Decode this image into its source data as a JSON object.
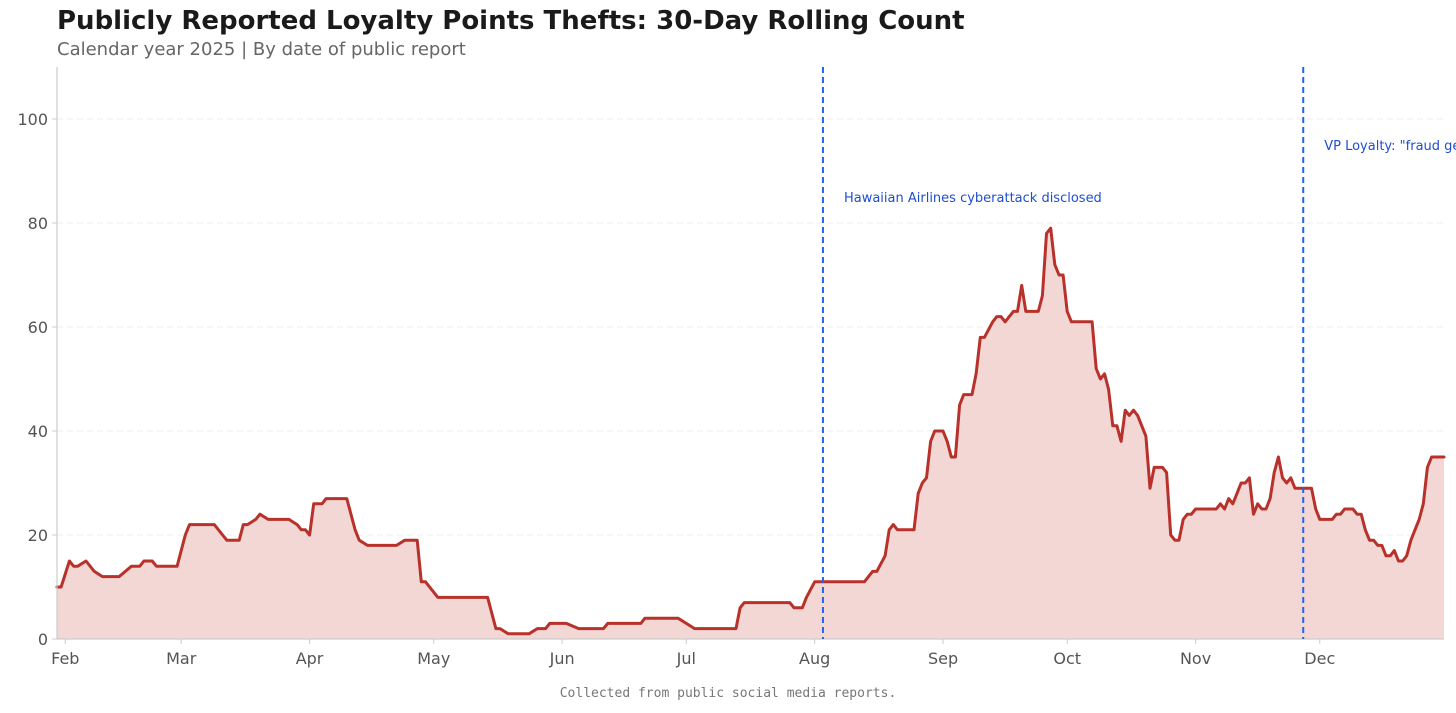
{
  "chart_data": {
    "type": "area",
    "title": "Publicly Reported Loyalty Points Thefts: 30-Day Rolling Count",
    "subtitle": "Calendar year 2025 | By date of public report",
    "footer": "Collected from public social media reports.",
    "ylim": [
      0,
      110
    ],
    "y_ticks": [
      0,
      20,
      40,
      60,
      80,
      100
    ],
    "x_range": [
      "2025-01-30",
      "2025-12-31"
    ],
    "x_ticks": [
      {
        "date": "2025-02-01",
        "label": "Feb"
      },
      {
        "date": "2025-03-01",
        "label": "Mar"
      },
      {
        "date": "2025-04-01",
        "label": "Apr"
      },
      {
        "date": "2025-05-01",
        "label": "May"
      },
      {
        "date": "2025-06-01",
        "label": "Jun"
      },
      {
        "date": "2025-07-01",
        "label": "Jul"
      },
      {
        "date": "2025-08-01",
        "label": "Aug"
      },
      {
        "date": "2025-09-01",
        "label": "Sep"
      },
      {
        "date": "2025-10-01",
        "label": "Oct"
      },
      {
        "date": "2025-11-01",
        "label": "Nov"
      },
      {
        "date": "2025-12-01",
        "label": "Dec"
      }
    ],
    "grid": "horizontal",
    "colors": {
      "line": "#b8312a",
      "fill": "#f2d7d5",
      "annotation": "#2563eb",
      "annotation_text": "#1f4fcf"
    },
    "series": [
      {
        "points": [
          [
            "2025-01-30",
            10
          ],
          [
            "2025-01-31",
            10
          ],
          [
            "2025-02-02",
            15
          ],
          [
            "2025-02-03",
            14
          ],
          [
            "2025-02-04",
            14
          ],
          [
            "2025-02-06",
            15
          ],
          [
            "2025-02-08",
            13
          ],
          [
            "2025-02-10",
            12
          ],
          [
            "2025-02-14",
            12
          ],
          [
            "2025-02-17",
            14
          ],
          [
            "2025-02-19",
            14
          ],
          [
            "2025-02-20",
            15
          ],
          [
            "2025-02-22",
            15
          ],
          [
            "2025-02-23",
            14
          ],
          [
            "2025-02-28",
            14
          ],
          [
            "2025-03-02",
            20
          ],
          [
            "2025-03-03",
            22
          ],
          [
            "2025-03-09",
            22
          ],
          [
            "2025-03-11",
            20
          ],
          [
            "2025-03-12",
            19
          ],
          [
            "2025-03-15",
            19
          ],
          [
            "2025-03-16",
            22
          ],
          [
            "2025-03-17",
            22
          ],
          [
            "2025-03-19",
            23
          ],
          [
            "2025-03-20",
            24
          ],
          [
            "2025-03-22",
            23
          ],
          [
            "2025-03-27",
            23
          ],
          [
            "2025-03-29",
            22
          ],
          [
            "2025-03-30",
            21
          ],
          [
            "2025-03-31",
            21
          ],
          [
            "2025-04-01",
            20
          ],
          [
            "2025-04-02",
            26
          ],
          [
            "2025-04-04",
            26
          ],
          [
            "2025-04-05",
            27
          ],
          [
            "2025-04-10",
            27
          ],
          [
            "2025-04-12",
            21
          ],
          [
            "2025-04-13",
            19
          ],
          [
            "2025-04-15",
            18
          ],
          [
            "2025-04-22",
            18
          ],
          [
            "2025-04-24",
            19
          ],
          [
            "2025-04-27",
            19
          ],
          [
            "2025-04-28",
            11
          ],
          [
            "2025-04-29",
            11
          ],
          [
            "2025-04-30",
            10
          ],
          [
            "2025-05-02",
            8
          ],
          [
            "2025-05-14",
            8
          ],
          [
            "2025-05-16",
            2
          ],
          [
            "2025-05-17",
            2
          ],
          [
            "2025-05-19",
            1
          ],
          [
            "2025-05-24",
            1
          ],
          [
            "2025-05-26",
            2
          ],
          [
            "2025-05-28",
            2
          ],
          [
            "2025-05-29",
            3
          ],
          [
            "2025-06-02",
            3
          ],
          [
            "2025-06-05",
            2
          ],
          [
            "2025-06-11",
            2
          ],
          [
            "2025-06-12",
            3
          ],
          [
            "2025-06-20",
            3
          ],
          [
            "2025-06-21",
            4
          ],
          [
            "2025-06-29",
            4
          ],
          [
            "2025-07-01",
            3
          ],
          [
            "2025-07-03",
            2
          ],
          [
            "2025-07-13",
            2
          ],
          [
            "2025-07-14",
            6
          ],
          [
            "2025-07-15",
            7
          ],
          [
            "2025-07-26",
            7
          ],
          [
            "2025-07-27",
            6
          ],
          [
            "2025-07-29",
            6
          ],
          [
            "2025-07-30",
            8
          ],
          [
            "2025-08-01",
            11
          ],
          [
            "2025-08-13",
            11
          ],
          [
            "2025-08-14",
            12
          ],
          [
            "2025-08-15",
            13
          ],
          [
            "2025-08-16",
            13
          ],
          [
            "2025-08-18",
            16
          ],
          [
            "2025-08-19",
            21
          ],
          [
            "2025-08-20",
            22
          ],
          [
            "2025-08-21",
            21
          ],
          [
            "2025-08-25",
            21
          ],
          [
            "2025-08-26",
            28
          ],
          [
            "2025-08-27",
            30
          ],
          [
            "2025-08-28",
            31
          ],
          [
            "2025-08-29",
            38
          ],
          [
            "2025-08-30",
            40
          ],
          [
            "2025-09-01",
            40
          ],
          [
            "2025-09-02",
            38
          ],
          [
            "2025-09-03",
            35
          ],
          [
            "2025-09-04",
            35
          ],
          [
            "2025-09-05",
            45
          ],
          [
            "2025-09-06",
            47
          ],
          [
            "2025-09-08",
            47
          ],
          [
            "2025-09-09",
            51
          ],
          [
            "2025-09-10",
            58
          ],
          [
            "2025-09-11",
            58
          ],
          [
            "2025-09-13",
            61
          ],
          [
            "2025-09-14",
            62
          ],
          [
            "2025-09-15",
            62
          ],
          [
            "2025-09-16",
            61
          ],
          [
            "2025-09-17",
            62
          ],
          [
            "2025-09-18",
            63
          ],
          [
            "2025-09-19",
            63
          ],
          [
            "2025-09-20",
            68
          ],
          [
            "2025-09-21",
            63
          ],
          [
            "2025-09-24",
            63
          ],
          [
            "2025-09-25",
            66
          ],
          [
            "2025-09-26",
            78
          ],
          [
            "2025-09-27",
            79
          ],
          [
            "2025-09-28",
            72
          ],
          [
            "2025-09-29",
            70
          ],
          [
            "2025-09-30",
            70
          ],
          [
            "2025-10-01",
            63
          ],
          [
            "2025-10-02",
            61
          ],
          [
            "2025-10-07",
            61
          ],
          [
            "2025-10-08",
            52
          ],
          [
            "2025-10-09",
            50
          ],
          [
            "2025-10-10",
            51
          ],
          [
            "2025-10-11",
            48
          ],
          [
            "2025-10-12",
            41
          ],
          [
            "2025-10-13",
            41
          ],
          [
            "2025-10-14",
            38
          ],
          [
            "2025-10-15",
            44
          ],
          [
            "2025-10-16",
            43
          ],
          [
            "2025-10-17",
            44
          ],
          [
            "2025-10-18",
            43
          ],
          [
            "2025-10-20",
            39
          ],
          [
            "2025-10-21",
            29
          ],
          [
            "2025-10-22",
            33
          ],
          [
            "2025-10-24",
            33
          ],
          [
            "2025-10-25",
            32
          ],
          [
            "2025-10-26",
            20
          ],
          [
            "2025-10-27",
            19
          ],
          [
            "2025-10-28",
            19
          ],
          [
            "2025-10-29",
            23
          ],
          [
            "2025-10-30",
            24
          ],
          [
            "2025-10-31",
            24
          ],
          [
            "2025-11-01",
            25
          ],
          [
            "2025-11-06",
            25
          ],
          [
            "2025-11-07",
            26
          ],
          [
            "2025-11-08",
            25
          ],
          [
            "2025-11-09",
            27
          ],
          [
            "2025-11-10",
            26
          ],
          [
            "2025-11-11",
            28
          ],
          [
            "2025-11-12",
            30
          ],
          [
            "2025-11-13",
            30
          ],
          [
            "2025-11-14",
            31
          ],
          [
            "2025-11-15",
            24
          ],
          [
            "2025-11-16",
            26
          ],
          [
            "2025-11-17",
            25
          ],
          [
            "2025-11-18",
            25
          ],
          [
            "2025-11-19",
            27
          ],
          [
            "2025-11-20",
            32
          ],
          [
            "2025-11-21",
            35
          ],
          [
            "2025-11-22",
            31
          ],
          [
            "2025-11-23",
            30
          ],
          [
            "2025-11-24",
            31
          ],
          [
            "2025-11-25",
            29
          ],
          [
            "2025-11-29",
            29
          ],
          [
            "2025-11-30",
            25
          ],
          [
            "2025-12-01",
            23
          ],
          [
            "2025-12-04",
            23
          ],
          [
            "2025-12-05",
            24
          ],
          [
            "2025-12-06",
            24
          ],
          [
            "2025-12-07",
            25
          ],
          [
            "2025-12-09",
            25
          ],
          [
            "2025-12-10",
            24
          ],
          [
            "2025-12-11",
            24
          ],
          [
            "2025-12-12",
            21
          ],
          [
            "2025-12-13",
            19
          ],
          [
            "2025-12-14",
            19
          ],
          [
            "2025-12-15",
            18
          ],
          [
            "2025-12-16",
            18
          ],
          [
            "2025-12-17",
            16
          ],
          [
            "2025-12-18",
            16
          ],
          [
            "2025-12-19",
            17
          ],
          [
            "2025-12-20",
            15
          ],
          [
            "2025-12-21",
            15
          ],
          [
            "2025-12-22",
            16
          ],
          [
            "2025-12-23",
            19
          ],
          [
            "2025-12-24",
            21
          ],
          [
            "2025-12-25",
            23
          ],
          [
            "2025-12-26",
            26
          ],
          [
            "2025-12-27",
            33
          ],
          [
            "2025-12-28",
            35
          ],
          [
            "2025-12-29",
            35
          ],
          [
            "2025-12-30",
            35
          ],
          [
            "2025-12-31",
            35
          ]
        ]
      }
    ],
    "annotations": [
      {
        "date": "2025-08-03",
        "label": "Hawaiian Airlines cyberattack disclosed",
        "label_y": 84
      },
      {
        "date": "2025-11-27",
        "label": "VP Loyalty: \"fraud getting worse daily\"",
        "label_y": 94
      }
    ]
  }
}
